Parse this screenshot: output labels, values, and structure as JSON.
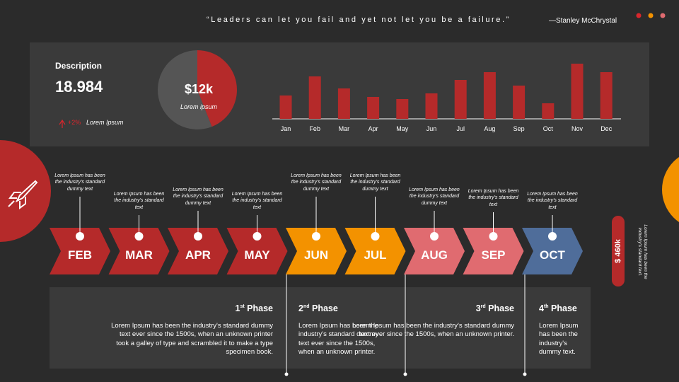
{
  "quote": "“Leaders can let you fail and yet not let you be a failure.”",
  "quote_author": "—Stanley McChrystal",
  "summary": {
    "label": "Description",
    "value": "18.984",
    "change": "+2%",
    "change_label": "Lorem Ipsum"
  },
  "chart_data": [
    {
      "type": "pie",
      "values": [
        44,
        56
      ],
      "colors": [
        "#b52a2a",
        "#555555"
      ],
      "center_value": "$12k",
      "center_label": "Lorem ipsum"
    },
    {
      "type": "bar",
      "categories": [
        "Jan",
        "Feb",
        "Mar",
        "Apr",
        "May",
        "Jun",
        "Jul",
        "Aug",
        "Sep",
        "Oct",
        "Nov",
        "Dec"
      ],
      "values": [
        33,
        60,
        43,
        31,
        28,
        36,
        55,
        66,
        47,
        22,
        78,
        66
      ],
      "color": "#b52a2a"
    }
  ],
  "timeline": [
    {
      "month": "FEB",
      "note": "Lorem Ipsum has been the industry's standard dummy text",
      "color": "#b52a2a"
    },
    {
      "month": "MAR",
      "note": "Lorem Ipsum has been the industry's standard text",
      "color": "#b52a2a"
    },
    {
      "month": "APR",
      "note": "Lorem Ipsum has been the industry's standard dummy text",
      "color": "#b52a2a"
    },
    {
      "month": "MAY",
      "note": "Lorem Ipsum has been the industry's standard text",
      "color": "#b52a2a"
    },
    {
      "month": "JUN",
      "note": "Lorem Ipsum has been the industry's standard dummy text",
      "color": "#f39200"
    },
    {
      "month": "JUL",
      "note": "Lorem Ipsum has been the industry's standard dummy text",
      "color": "#f39200"
    },
    {
      "month": "AUG",
      "note": "Lorem Ipsum has been the industry's standard dummy text",
      "color": "#e06b70"
    },
    {
      "month": "SEP",
      "note": "Lorem Ipsum has been the industry's standard text",
      "color": "#e06b70"
    },
    {
      "month": "OCT",
      "note": "Lorem Ipsum has been the industry's standard text",
      "color": "#4f6d9a"
    }
  ],
  "phases": [
    {
      "ordinal": "1",
      "suffix": "st",
      "title": "Phase",
      "text": "Lorem Ipsum has been the industry's standard dummy text ever since the 1500s, when an unknown printer took a galley of type and scrambled it to make a type specimen book."
    },
    {
      "ordinal": "2",
      "suffix": "nd",
      "title": "Phase",
      "text": "Lorem Ipsum has been the industry's standard dummy text ever since the 1500s, when an unknown printer."
    },
    {
      "ordinal": "3",
      "suffix": "rd",
      "title": "Phase",
      "text": "Lorem Ipsum has been the industry's standard dummy text ever since the 1500s, when an unknown printer."
    },
    {
      "ordinal": "4",
      "suffix": "th",
      "title": "Phase",
      "text": "Lorem Ipsum has been the industry's dummy text."
    }
  ],
  "side": {
    "value": "$ 460k",
    "note": "Lorem Ipsum has been the industry's standard text."
  }
}
